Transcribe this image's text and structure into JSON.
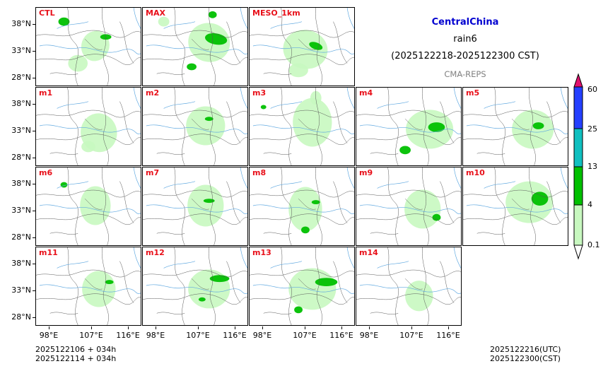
{
  "header": {
    "region": "CentralChina",
    "variable": "rain6",
    "period": "(2025122218-2025122300 CST)",
    "model": "CMA-REPS"
  },
  "panels": [
    {
      "label": "CTL"
    },
    {
      "label": "MAX"
    },
    {
      "label": "MESO_1km"
    },
    {
      "label": "m1"
    },
    {
      "label": "m2"
    },
    {
      "label": "m3"
    },
    {
      "label": "m4"
    },
    {
      "label": "m5"
    },
    {
      "label": "m6"
    },
    {
      "label": "m7"
    },
    {
      "label": "m8"
    },
    {
      "label": "m9"
    },
    {
      "label": "m10"
    },
    {
      "label": "m11"
    },
    {
      "label": "m12"
    },
    {
      "label": "m13"
    },
    {
      "label": "m14"
    }
  ],
  "axes": {
    "lat_labels": [
      "38°N",
      "33°N",
      "28°N"
    ],
    "lon_labels": [
      "98°E",
      "107°E",
      "116°E"
    ]
  },
  "colorbar": {
    "levels": [
      "60",
      "25",
      "13",
      "4",
      "0.1"
    ],
    "colors": {
      "over": "#e0106e",
      "band_25_60": "#2540ff",
      "band_13_25": "#10c0c0",
      "band_4_13": "#00c000",
      "band_01_4": "#c8f8c0"
    }
  },
  "footer": {
    "init_utc": "2025122106  +  034h",
    "init_cst": "2025122114  +  034h",
    "valid_utc": "2025122216(UTC)",
    "valid_cst": "2025122300(CST)"
  }
}
